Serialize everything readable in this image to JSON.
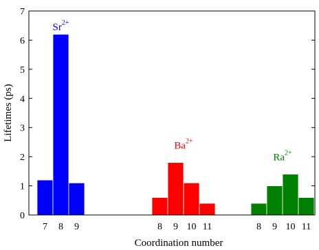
{
  "chart_data": {
    "type": "bar",
    "xlabel": "Coordination number",
    "ylabel": "Lifetimes (ps)",
    "ylim": [
      0,
      7
    ],
    "yticks": [
      "0",
      "1",
      "2",
      "3",
      "4",
      "5",
      "6",
      "7"
    ],
    "grid": false,
    "groups": [
      {
        "ion": "Sr",
        "charge": "2+",
        "color": "#0000ff",
        "categories": [
          "7",
          "8",
          "9"
        ],
        "values": [
          1.2,
          6.2,
          1.1
        ]
      },
      {
        "ion": "Ba",
        "charge": "2+",
        "color": "#ff0000",
        "categories": [
          "8",
          "9",
          "10",
          "11"
        ],
        "values": [
          0.6,
          1.8,
          1.1,
          0.4
        ]
      },
      {
        "ion": "Ra",
        "charge": "2+",
        "color": "#008000",
        "categories": [
          "8",
          "9",
          "10",
          "11"
        ],
        "values": [
          0.4,
          1.0,
          1.4,
          0.6
        ]
      }
    ]
  }
}
